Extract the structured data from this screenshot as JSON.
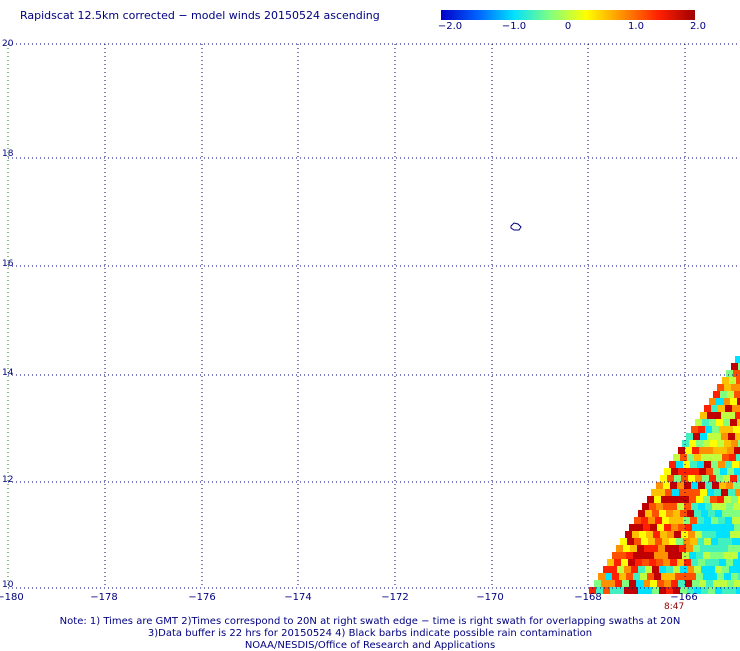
{
  "title": "Rapidscat 12.5km corrected − model winds 20150524 ascending",
  "colorbar": {
    "labels": [
      "−2.0",
      "−1.0",
      "0",
      "1.0",
      "2.0"
    ],
    "range": [
      -2.0,
      2.0
    ],
    "colors": [
      "#0000c8",
      "#0060ff",
      "#00e0ff",
      "#80ff80",
      "#ffff00",
      "#ff9000",
      "#ff2000",
      "#a00000"
    ]
  },
  "map": {
    "lon_range": [
      -180,
      -165
    ],
    "lat_range": [
      10,
      20
    ],
    "x_ticks": [
      "−180",
      "−178",
      "−176",
      "−174",
      "−172",
      "−170",
      "−168",
      "−166"
    ],
    "y_ticks": [
      "20",
      "18",
      "16",
      "14",
      "12",
      "10"
    ],
    "grid": "dotted",
    "grid_color": "#000080",
    "land_outline_color": "#000080"
  },
  "timestamp_label": "8:47",
  "notes": [
    "Note: 1) Times are GMT 2)Times correspond to 20N at right swath edge − time is right swath for overlapping swaths at 20N",
    "3)Data buffer is 22 hrs for 20150524 4) Black barbs indicate possible rain contamination",
    "NOAA/NESDIS/Office of Research and Applications"
  ]
}
